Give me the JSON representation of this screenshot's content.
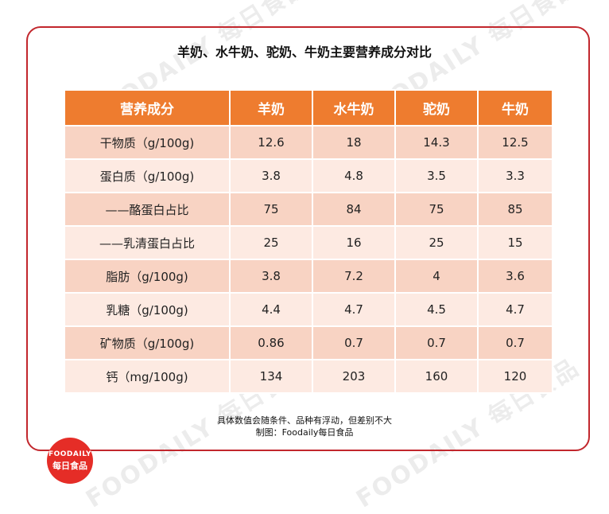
{
  "title": "羊奶、水牛奶、驼奶、牛奶主要营养成分对比",
  "table": {
    "headers": [
      "营养成分",
      "羊奶",
      "水牛奶",
      "驼奶",
      "牛奶"
    ],
    "rows": [
      [
        "干物质（g/100g)",
        "12.6",
        "18",
        "14.3",
        "12.5"
      ],
      [
        "蛋白质（g/100g)",
        "3.8",
        "4.8",
        "3.5",
        "3.3"
      ],
      [
        "——酪蛋白占比",
        "75",
        "84",
        "75",
        "85"
      ],
      [
        "——乳清蛋白占比",
        "25",
        "16",
        "25",
        "15"
      ],
      [
        "脂肪（g/100g)",
        "3.8",
        "7.2",
        "4",
        "3.6"
      ],
      [
        "乳糖（g/100g)",
        "4.4",
        "4.7",
        "4.5",
        "4.7"
      ],
      [
        "矿物质（g/100g)",
        "0.86",
        "0.7",
        "0.7",
        "0.7"
      ],
      [
        "钙（mg/100g)",
        "134",
        "203",
        "160",
        "120"
      ]
    ]
  },
  "footnote": "具体数值会随条件、品种有浮动，但差别不大",
  "credit": "制图：Foodaily每日食品",
  "logo": {
    "line1": "FOODAILY",
    "line2": "每日食品"
  },
  "watermark": "FOODAILY 每日食品",
  "colors": {
    "frame": "#c2272d",
    "header": "#ee7c2f",
    "row_dark": "#f8d3c3",
    "row_light": "#fdeae2",
    "logo": "#e52d27"
  }
}
